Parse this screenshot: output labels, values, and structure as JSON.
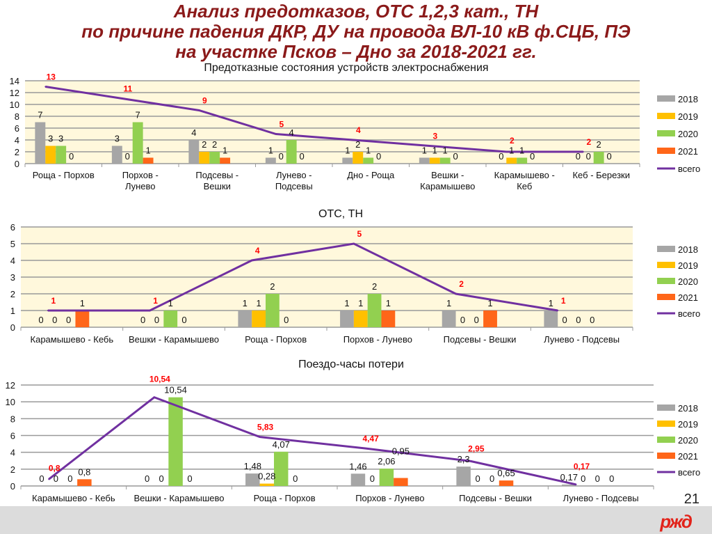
{
  "slide": {
    "title_lines": [
      "Анализ предотказов, ОТС 1,2,3 кат., ТН",
      "по причине падения ДКР, ДУ на провода ВЛ-10 кВ ф.СЦБ, ПЭ",
      "на участке Псков – Дно за 2018-2021 гг."
    ],
    "page_number": "21",
    "logo_text": "РЖД"
  },
  "colors": {
    "2018": "#a6a6a6",
    "2019": "#ffc000",
    "2020": "#92d050",
    "2021": "#ff6619",
    "total": "#7030a0",
    "total_label": "#ff0000",
    "plot_bg": "#fff8dc"
  },
  "chart_data": [
    {
      "type": "bar",
      "title": "Предотказные состояния устройств электроснабжения",
      "categories": [
        "Роща - Порхов",
        "Порхов - Лунево",
        "Подсевы - Вешки",
        "Лунево - Подсевы",
        "Дно - Роща",
        "Вешки - Карамышево",
        "Карамышево - Кеб",
        "Кеб - Березки"
      ],
      "series": [
        {
          "name": "2018",
          "values": [
            7,
            3,
            4,
            1,
            1,
            1,
            0,
            0
          ]
        },
        {
          "name": "2019",
          "values": [
            3,
            0,
            2,
            0,
            2,
            1,
            1,
            0
          ]
        },
        {
          "name": "2020",
          "values": [
            3,
            7,
            2,
            4,
            1,
            1,
            1,
            2
          ]
        },
        {
          "name": "2021",
          "values": [
            0,
            1,
            1,
            0,
            0,
            0,
            0,
            0
          ]
        }
      ],
      "line": {
        "name": "всего",
        "values": [
          13,
          11,
          9,
          5,
          4,
          3,
          2,
          2
        ]
      },
      "ylim": [
        0,
        14
      ],
      "yticks": [
        0,
        2,
        4,
        6,
        8,
        10,
        12,
        14
      ],
      "grid": true,
      "legend": "right",
      "plot_bg": "cream"
    },
    {
      "type": "bar",
      "title": "ОТС, ТН",
      "categories": [
        "Карамышево - Кебь",
        "Вешки - Карамышево",
        "Роща - Порхов",
        "Порхов - Лунево",
        "Подсевы - Вешки",
        "Лунево - Подсевы"
      ],
      "series": [
        {
          "name": "2018",
          "values": [
            0,
            0,
            1,
            1,
            1,
            1
          ]
        },
        {
          "name": "2019",
          "values": [
            0,
            0,
            1,
            1,
            0,
            0
          ]
        },
        {
          "name": "2020",
          "values": [
            0,
            1,
            2,
            2,
            0,
            0
          ]
        },
        {
          "name": "2021",
          "values": [
            1,
            0,
            0,
            1,
            1,
            0
          ]
        }
      ],
      "line": {
        "name": "всего",
        "values": [
          1,
          1,
          4,
          5,
          2,
          1
        ]
      },
      "ylim": [
        0,
        6
      ],
      "yticks": [
        0,
        1,
        2,
        3,
        4,
        5,
        6
      ],
      "grid": true,
      "legend": "right",
      "plot_bg": "cream"
    },
    {
      "type": "bar",
      "title": "Поездо-часы потери",
      "categories": [
        "Карамышево - Кебь",
        "Вешки - Карамышево",
        "Роща - Порхов",
        "Порхов - Лунево",
        "Подсевы - Вешки",
        "Лунево - Подсевы"
      ],
      "series": [
        {
          "name": "2018",
          "values": [
            0,
            0,
            1.48,
            1.46,
            2.3,
            0.17
          ]
        },
        {
          "name": "2019",
          "values": [
            0,
            0,
            0.28,
            0,
            0,
            0
          ]
        },
        {
          "name": "2020",
          "values": [
            0,
            10.54,
            4.07,
            2.06,
            0,
            0
          ]
        },
        {
          "name": "2021",
          "values": [
            0.8,
            0,
            0,
            0.95,
            0.65,
            0
          ]
        }
      ],
      "line": {
        "name": "всего",
        "values": [
          0.8,
          10.54,
          5.83,
          4.47,
          2.95,
          0.17
        ]
      },
      "ylim": [
        0,
        12
      ],
      "yticks": [
        0,
        2,
        4,
        6,
        8,
        10,
        12
      ],
      "grid": true,
      "legend": "right",
      "plot_bg": "white"
    }
  ]
}
